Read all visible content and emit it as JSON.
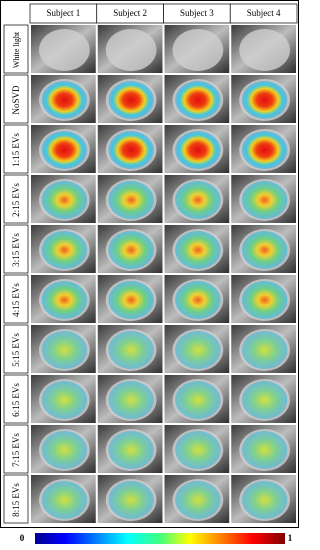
{
  "columns": [
    "Subject 1",
    "Subject 2",
    "Subject 3",
    "Subject 4"
  ],
  "rows": [
    "White light",
    "NoSVD",
    "1:15 EVs",
    "2:15 EVs",
    "3:15 EVs",
    "4:15 EVs",
    "5:15 EVs",
    "6:15 EVs",
    "7:15 EVs",
    "8:15 EVs"
  ],
  "colorbar": {
    "low": "0",
    "high": "1"
  }
}
